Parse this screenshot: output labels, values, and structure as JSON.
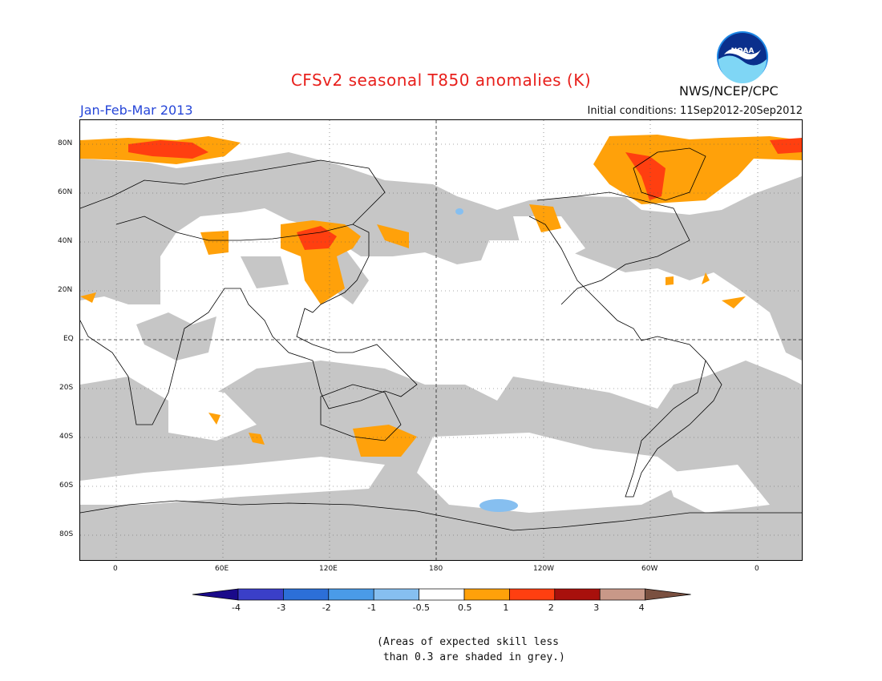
{
  "header": {
    "title": "CFSv2 seasonal T850 anomalies (K)",
    "period": "Jan-Feb-Mar 2013",
    "initial_conditions": "Initial conditions: 11Sep2012-20Sep2012",
    "agency": "NWS/NCEP/CPC",
    "logo_text": "NOAA"
  },
  "map": {
    "lat_labels": [
      "80N",
      "60N",
      "40N",
      "20N",
      "EQ",
      "20S",
      "40S",
      "60S",
      "80S"
    ],
    "lon_labels": [
      "0",
      "60E",
      "120E",
      "180",
      "120W",
      "60W",
      "0"
    ],
    "dashed_lines": [
      "EQ",
      "180"
    ],
    "projection": "cylindrical equidistant",
    "lon_range": [
      -20,
      385
    ],
    "lat_range": [
      -90,
      90
    ]
  },
  "colorbar": {
    "ticks": [
      "-4",
      "-3",
      "-2",
      "-1",
      "-0.5",
      "0.5",
      "1",
      "2",
      "3",
      "4"
    ],
    "colors": [
      "#1a0a8a",
      "#3a3fc8",
      "#2c6fd8",
      "#4a9be8",
      "#86bff0",
      "#ffffff",
      "#ffa10a",
      "#ff3f10",
      "#a8100c",
      "#c89888",
      "#7a5040"
    ]
  },
  "note": "(Areas of expected skill less\n than 0.3 are shaded in grey.)",
  "colors": {
    "grey": "#c6c6c6",
    "orange": "#ffa10a",
    "red": "#ff3f10",
    "light_blue": "#86bff0",
    "title": "#e8201c",
    "period": "#2646d8"
  }
}
